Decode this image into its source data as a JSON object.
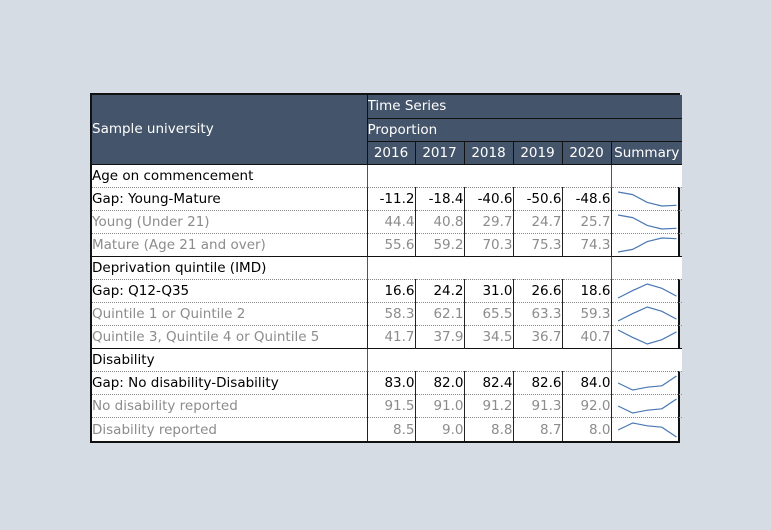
{
  "header": {
    "title": "Sample university",
    "time_series": "Time Series",
    "proportion": "Proportion",
    "years": [
      "2016",
      "2017",
      "2018",
      "2019",
      "2020"
    ],
    "summary": "Summary"
  },
  "colors": {
    "header_bg": "#44546a",
    "spark": "#4a78b4",
    "muted_text": "#8c8c8c"
  },
  "sections": [
    {
      "title": "Age on commencement",
      "rows": [
        {
          "label": "Gap: Young-Mature",
          "type": "gap",
          "values": [
            "-11.2",
            "-18.4",
            "-40.6",
            "-50.6",
            "-48.6"
          ]
        },
        {
          "label": "Young (Under 21)",
          "type": "sub",
          "values": [
            "44.4",
            "40.8",
            "29.7",
            "24.7",
            "25.7"
          ]
        },
        {
          "label": "Mature (Age 21 and over)",
          "type": "sub",
          "values": [
            "55.6",
            "59.2",
            "70.3",
            "75.3",
            "74.3"
          ]
        }
      ]
    },
    {
      "title": "Deprivation quintile (IMD)",
      "rows": [
        {
          "label": "Gap: Q12-Q35",
          "type": "gap",
          "values": [
            "16.6",
            "24.2",
            "31.0",
            "26.6",
            "18.6"
          ]
        },
        {
          "label": "Quintile 1 or Quintile 2",
          "type": "sub",
          "values": [
            "58.3",
            "62.1",
            "65.5",
            "63.3",
            "59.3"
          ]
        },
        {
          "label": "Quintile 3, Quintile 4 or Quintile 5",
          "type": "sub",
          "values": [
            "41.7",
            "37.9",
            "34.5",
            "36.7",
            "40.7"
          ]
        }
      ]
    },
    {
      "title": "Disability",
      "rows": [
        {
          "label": "Gap: No disability-Disability",
          "type": "gap",
          "values": [
            "83.0",
            "82.0",
            "82.4",
            "82.6",
            "84.0"
          ]
        },
        {
          "label": "No disability reported",
          "type": "sub",
          "values": [
            "91.5",
            "91.0",
            "91.2",
            "91.3",
            "92.0"
          ]
        },
        {
          "label": "Disability reported",
          "type": "sub",
          "values": [
            "8.5",
            "9.0",
            "8.8",
            "8.7",
            "8.0"
          ]
        }
      ]
    }
  ]
}
